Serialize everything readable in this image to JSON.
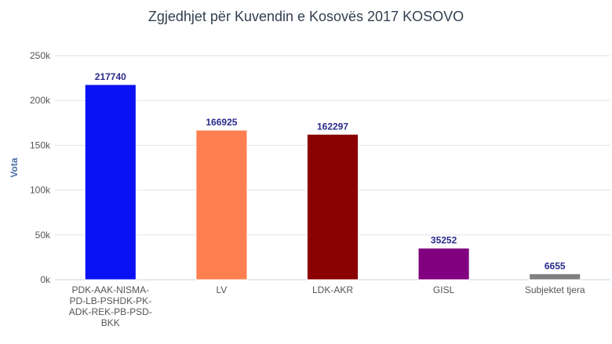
{
  "chart_data": {
    "type": "bar",
    "title": "Zgjedhjet për Kuvendin e Kosovës 2017 KOSOVO",
    "ylabel": "Vota",
    "xlabel": "",
    "ylim": [
      0,
      250000
    ],
    "y_ticks": [
      0,
      50000,
      100000,
      150000,
      200000,
      250000
    ],
    "y_tick_labels": [
      "0k",
      "50k",
      "100k",
      "150k",
      "200k",
      "250k"
    ],
    "grid": true,
    "legend": "none",
    "categories": [
      [
        "PDK-AAK-NISMA-",
        "PD-LB-PSHDK-PK-",
        "ADK-REK-PB-PSD-",
        "BKK"
      ],
      [
        "LV"
      ],
      [
        "LDK-AKR"
      ],
      [
        "GISL"
      ],
      [
        "Subjektet tjera"
      ]
    ],
    "values": [
      217740,
      166925,
      162297,
      35252,
      6655
    ],
    "data_labels": [
      "217740",
      "166925",
      "162297",
      "35252",
      "6655"
    ],
    "colors": [
      "#0a12f5",
      "#ff7f50",
      "#8b0000",
      "#800080",
      "#808080"
    ]
  }
}
